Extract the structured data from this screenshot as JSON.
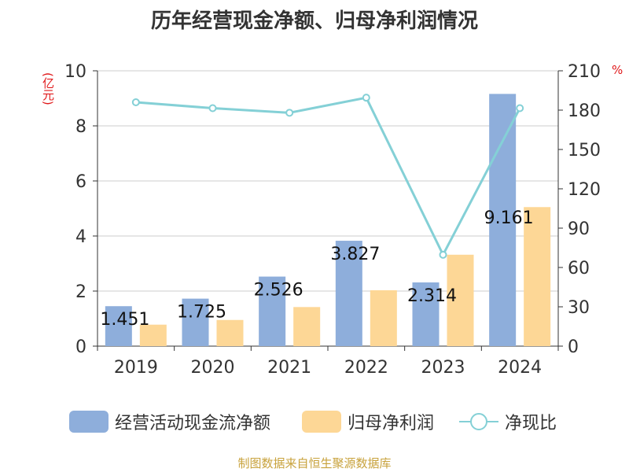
{
  "title": "历年经营现金净额、归母净利润情况",
  "left_unit": "(亿元)",
  "right_unit": "%",
  "source": "制图数据来自恒生聚源数据库",
  "legend": [
    {
      "label": "经营活动现金流净额",
      "color": "#8eaedb"
    },
    {
      "label": "归母净利润",
      "color": "#fdd796"
    },
    {
      "label": "净现比",
      "color": "#84d0d6"
    }
  ],
  "chart_data": {
    "type": "bar",
    "title": "历年经营现金净额、归母净利润情况",
    "categories": [
      "2019",
      "2020",
      "2021",
      "2022",
      "2023",
      "2024"
    ],
    "series": [
      {
        "name": "经营活动现金流净额",
        "type": "bar",
        "axis": "left",
        "color": "#8eaedb",
        "values": [
          1.451,
          1.725,
          2.526,
          3.827,
          2.314,
          9.161
        ],
        "data_labels": [
          "1.451",
          "1.725",
          "2.526",
          "3.827",
          "2.314",
          "9.161"
        ]
      },
      {
        "name": "归母净利润",
        "type": "bar",
        "axis": "left",
        "color": "#fdd796",
        "values": [
          0.78,
          0.95,
          1.42,
          2.03,
          3.32,
          5.05
        ]
      },
      {
        "name": "净现比",
        "type": "line",
        "axis": "right",
        "color": "#84d0d6",
        "values": [
          186,
          181.5,
          178,
          189.5,
          69.7,
          181.5
        ]
      }
    ],
    "left_axis": {
      "min": 0,
      "max": 10,
      "ticks": [
        "0",
        "2",
        "4",
        "6",
        "8",
        "10"
      ]
    },
    "right_axis": {
      "min": 0,
      "max": 210,
      "ticks": [
        "0",
        "30",
        "60",
        "90",
        "120",
        "150",
        "180",
        "210"
      ]
    },
    "grid": true,
    "legend_position": "bottom"
  }
}
